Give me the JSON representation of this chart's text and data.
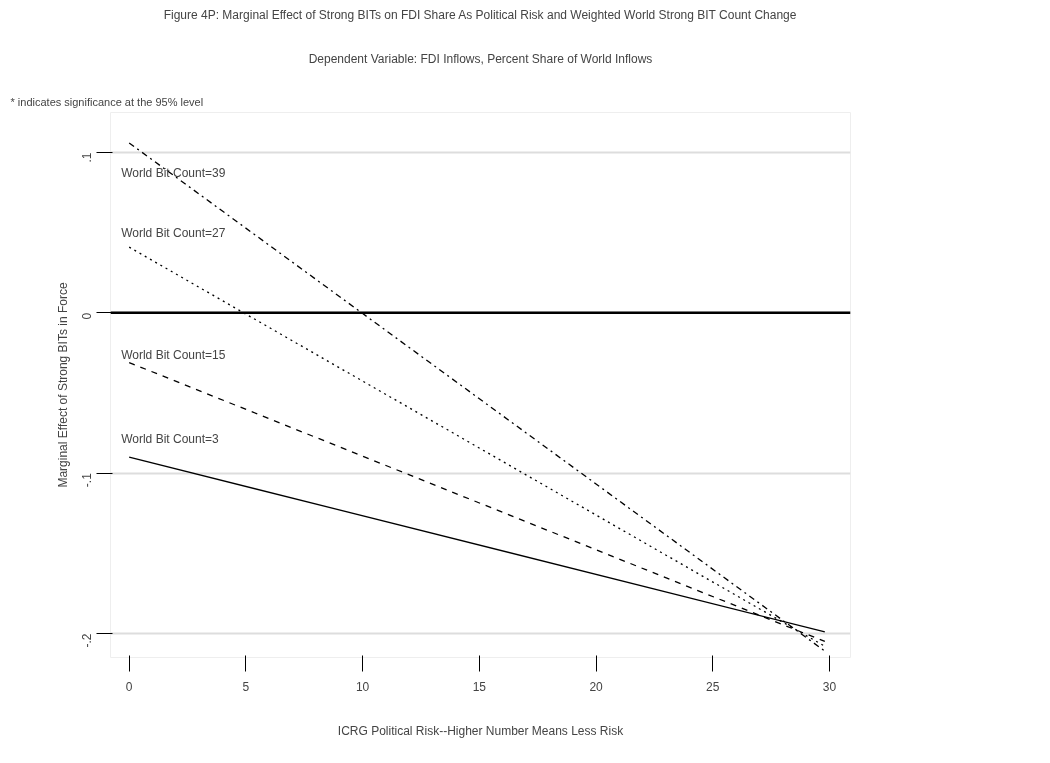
{
  "chart_data": {
    "type": "line",
    "title": "Figure 4P: Marginal Effect of Strong BITs on FDI Share As Political Risk and Weighted World Strong BIT Count Change",
    "subtitle": "Dependent Variable: FDI Inflows, Percent Share of World Inflows",
    "annotations": [
      "* indicates significance at the 95% level"
    ],
    "xlabel": "ICRG Political Risk--Higher Number Means Less Risk",
    "ylabel": "Marginal Effect of Strong BITs in Force",
    "x": [
      0,
      29.8
    ],
    "series": [
      {
        "name": "World Bit Count=39",
        "color": "#000000",
        "line_style": "dashdot",
        "values": [
          0.106,
          -0.211
        ]
      },
      {
        "name": "World Bit Count=27",
        "color": "#000000",
        "line_style": "dotted",
        "values": [
          0.041,
          -0.208
        ]
      },
      {
        "name": "World Bit Count=15",
        "color": "#000000",
        "line_style": "dashed",
        "values": [
          -0.031,
          -0.205
        ]
      },
      {
        "name": "World Bit Count=3",
        "color": "#000000",
        "line_style": "solid",
        "values": [
          -0.09,
          -0.199
        ]
      }
    ],
    "ref_lines": [
      {
        "axis": "y",
        "value": 0,
        "color": "#000000"
      }
    ],
    "xlim": [
      -0.8,
      30.9
    ],
    "ylim": [
      -0.215,
      0.125
    ],
    "xticks": [
      0,
      5,
      10,
      15,
      20,
      25,
      30
    ],
    "yticks": [
      {
        "value": 0.1,
        "label": ".1"
      },
      {
        "value": 0,
        "label": "0"
      },
      {
        "value": -0.1,
        "label": "-.1"
      },
      {
        "value": -0.2,
        "label": "-.2"
      }
    ],
    "grid": "y",
    "legend": false
  }
}
